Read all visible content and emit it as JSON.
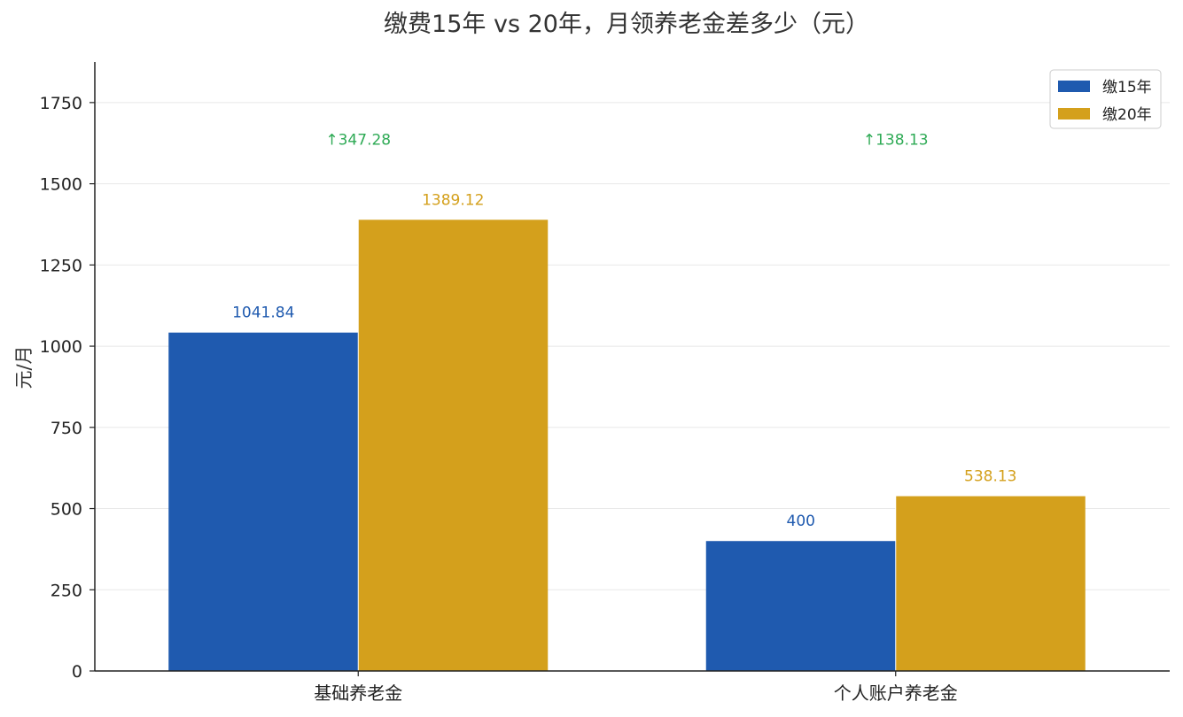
{
  "chart_data": {
    "type": "bar",
    "title": "缴费15年 vs 20年，月领养老金差多少（元）",
    "xlabel": "",
    "ylabel": "元/月",
    "categories": [
      "基础养老金",
      "个人账户养老金"
    ],
    "series": [
      {
        "name": "缴15年",
        "values": [
          1041.84,
          400
        ],
        "color": "#1f5aaf"
      },
      {
        "name": "缴20年",
        "values": [
          1389.12,
          538.13
        ],
        "color": "#d4a01c"
      }
    ],
    "value_labels": {
      "缴15年": [
        "1041.84",
        "400"
      ],
      "缴20年": [
        "1389.12",
        "538.13"
      ]
    },
    "annotations": [
      "↑347.28",
      "↑138.13"
    ],
    "annotation_color": "#2eaa55",
    "ylim": [
      0,
      1875
    ],
    "yticks": [
      0,
      250,
      500,
      750,
      1000,
      1250,
      1500,
      1750
    ],
    "grid": true,
    "legend_position": "top-right"
  }
}
